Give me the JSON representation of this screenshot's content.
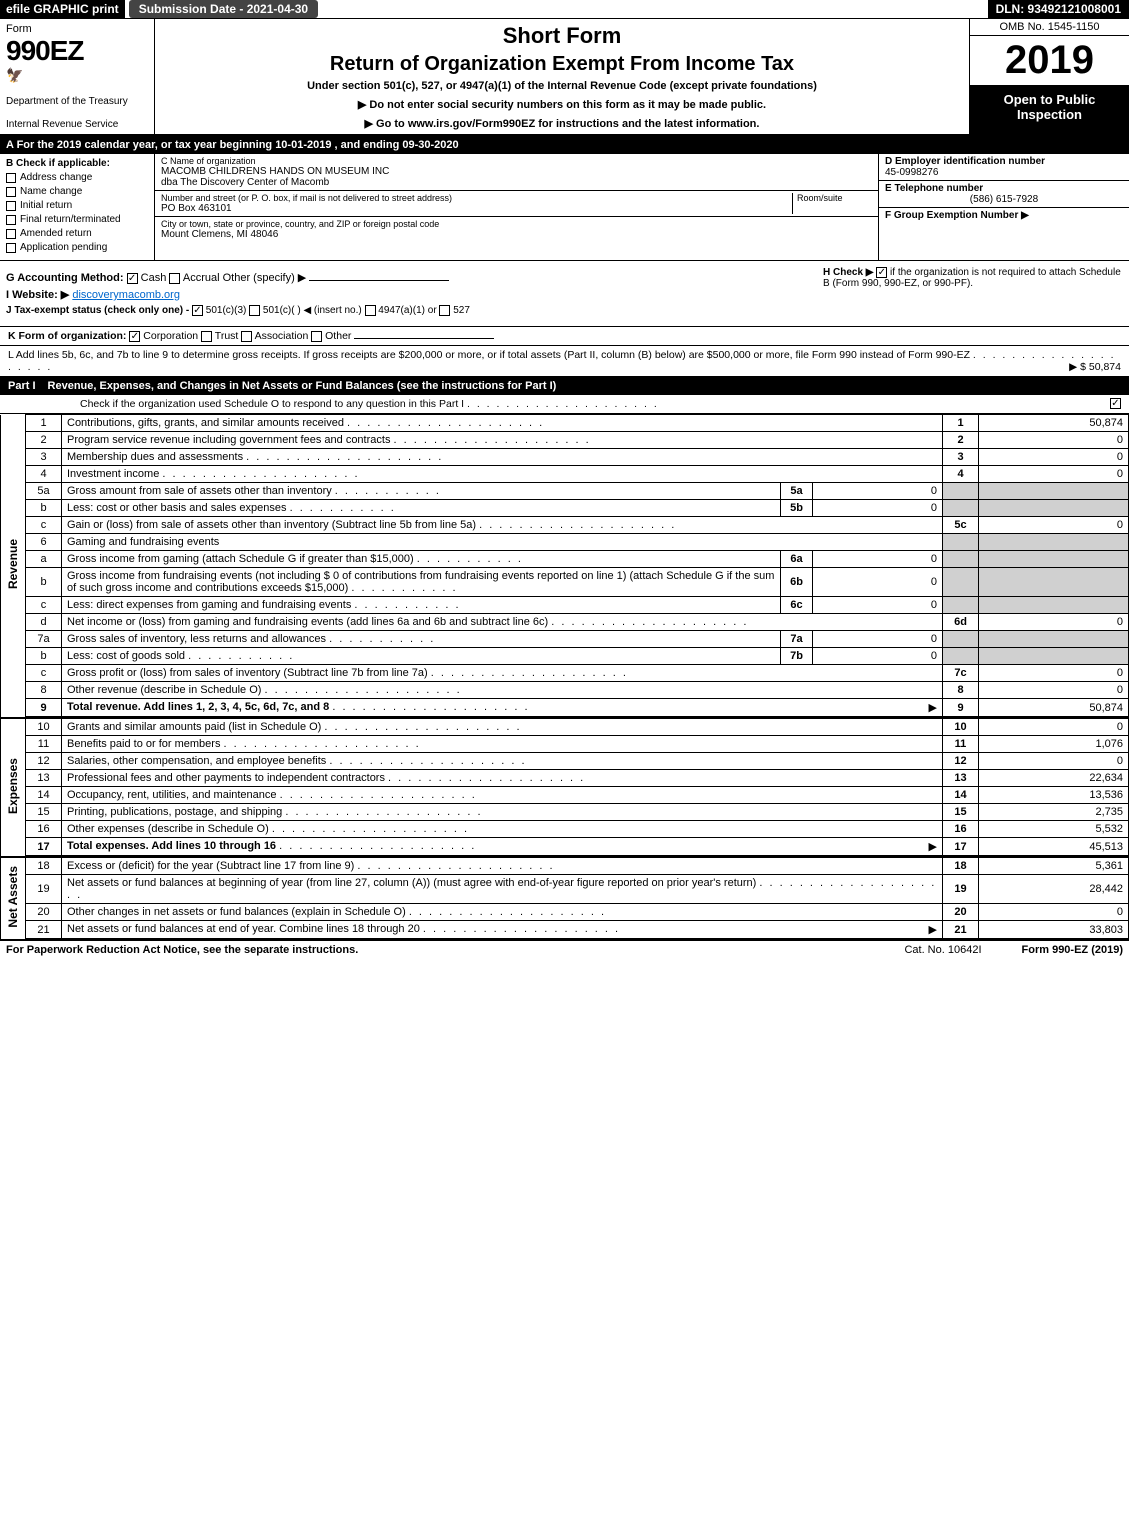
{
  "top": {
    "efile": "efile GRAPHIC print",
    "submission": "Submission Date - 2021-04-30",
    "dln": "DLN: 93492121008001"
  },
  "header": {
    "form": "Form",
    "number": "990EZ",
    "dept": "Department of the Treasury",
    "irs": "Internal Revenue Service",
    "short_form": "Short Form",
    "title": "Return of Organization Exempt From Income Tax",
    "subtitle": "Under section 501(c), 527, or 4947(a)(1) of the Internal Revenue Code (except private foundations)",
    "notice1": "▶ Do not enter social security numbers on this form as it may be made public.",
    "notice2": "▶ Go to www.irs.gov/Form990EZ for instructions and the latest information.",
    "omb": "OMB No. 1545-1150",
    "year": "2019",
    "open": "Open to Public Inspection"
  },
  "lineA": "A For the 2019 calendar year, or tax year beginning 10-01-2019 , and ending 09-30-2020",
  "colB": {
    "title": "B Check if applicable:",
    "items": [
      "Address change",
      "Name change",
      "Initial return",
      "Final return/terminated",
      "Amended return",
      "Application pending"
    ]
  },
  "colC": {
    "name_label": "C Name of organization",
    "name": "MACOMB CHILDRENS HANDS ON MUSEUM INC",
    "dba": "dba The Discovery Center of Macomb",
    "addr_label": "Number and street (or P. O. box, if mail is not delivered to street address)",
    "room_label": "Room/suite",
    "addr": "PO Box 463101",
    "city_label": "City or town, state or province, country, and ZIP or foreign postal code",
    "city": "Mount Clemens, MI  48046"
  },
  "colD": {
    "ein_label": "D Employer identification number",
    "ein": "45-0998276",
    "phone_label": "E Telephone number",
    "phone": "(586) 615-7928",
    "group_label": "F Group Exemption Number  ▶"
  },
  "gh": {
    "g": "G Accounting Method:",
    "cash": "Cash",
    "accrual": "Accrual",
    "other": "Other (specify) ▶",
    "h": "H Check ▶",
    "h_text": "if the organization is not required to attach Schedule B (Form 990, 990-EZ, or 990-PF).",
    "i_label": "I Website: ▶",
    "website": "discoverymacomb.org",
    "j": "J Tax-exempt status (check only one) -",
    "j_opts": [
      "501(c)(3)",
      "501(c)(  ) ◀ (insert no.)",
      "4947(a)(1) or",
      "527"
    ],
    "k": "K Form of organization:",
    "k_opts": [
      "Corporation",
      "Trust",
      "Association",
      "Other"
    ],
    "l": "L Add lines 5b, 6c, and 7b to line 9 to determine gross receipts. If gross receipts are $200,000 or more, or if total assets (Part II, column (B) below) are $500,000 or more, file Form 990 instead of Form 990-EZ",
    "l_amount": "▶ $ 50,874"
  },
  "part1": {
    "label": "Part I",
    "title": "Revenue, Expenses, and Changes in Net Assets or Fund Balances (see the instructions for Part I)",
    "check_text": "Check if the organization used Schedule O to respond to any question in this Part I"
  },
  "sections": {
    "revenue": "Revenue",
    "expenses": "Expenses",
    "netassets": "Net Assets"
  },
  "rows": [
    {
      "n": "1",
      "d": "Contributions, gifts, grants, and similar amounts received",
      "ln": "1",
      "v": "50,874"
    },
    {
      "n": "2",
      "d": "Program service revenue including government fees and contracts",
      "ln": "2",
      "v": "0"
    },
    {
      "n": "3",
      "d": "Membership dues and assessments",
      "ln": "3",
      "v": "0"
    },
    {
      "n": "4",
      "d": "Investment income",
      "ln": "4",
      "v": "0"
    },
    {
      "n": "5a",
      "d": "Gross amount from sale of assets other than inventory",
      "sub": "5a",
      "sv": "0"
    },
    {
      "n": "b",
      "d": "Less: cost or other basis and sales expenses",
      "sub": "5b",
      "sv": "0"
    },
    {
      "n": "c",
      "d": "Gain or (loss) from sale of assets other than inventory (Subtract line 5b from line 5a)",
      "ln": "5c",
      "v": "0"
    },
    {
      "n": "6",
      "d": "Gaming and fundraising events",
      "shade": true
    },
    {
      "n": "a",
      "d": "Gross income from gaming (attach Schedule G if greater than $15,000)",
      "sub": "6a",
      "sv": "0",
      "shade": true
    },
    {
      "n": "b",
      "d": "Gross income from fundraising events (not including $ 0 of contributions from fundraising events reported on line 1) (attach Schedule G if the sum of such gross income and contributions exceeds $15,000)",
      "sub": "6b",
      "sv": "0",
      "shade": true
    },
    {
      "n": "c",
      "d": "Less: direct expenses from gaming and fundraising events",
      "sub": "6c",
      "sv": "0",
      "shade": true
    },
    {
      "n": "d",
      "d": "Net income or (loss) from gaming and fundraising events (add lines 6a and 6b and subtract line 6c)",
      "ln": "6d",
      "v": "0"
    },
    {
      "n": "7a",
      "d": "Gross sales of inventory, less returns and allowances",
      "sub": "7a",
      "sv": "0"
    },
    {
      "n": "b",
      "d": "Less: cost of goods sold",
      "sub": "7b",
      "sv": "0"
    },
    {
      "n": "c",
      "d": "Gross profit or (loss) from sales of inventory (Subtract line 7b from line 7a)",
      "ln": "7c",
      "v": "0"
    },
    {
      "n": "8",
      "d": "Other revenue (describe in Schedule O)",
      "ln": "8",
      "v": "0"
    },
    {
      "n": "9",
      "d": "Total revenue. Add lines 1, 2, 3, 4, 5c, 6d, 7c, and 8",
      "ln": "9",
      "v": "50,874",
      "bold": true,
      "arrow": true
    }
  ],
  "exp_rows": [
    {
      "n": "10",
      "d": "Grants and similar amounts paid (list in Schedule O)",
      "ln": "10",
      "v": "0"
    },
    {
      "n": "11",
      "d": "Benefits paid to or for members",
      "ln": "11",
      "v": "1,076"
    },
    {
      "n": "12",
      "d": "Salaries, other compensation, and employee benefits",
      "ln": "12",
      "v": "0"
    },
    {
      "n": "13",
      "d": "Professional fees and other payments to independent contractors",
      "ln": "13",
      "v": "22,634"
    },
    {
      "n": "14",
      "d": "Occupancy, rent, utilities, and maintenance",
      "ln": "14",
      "v": "13,536"
    },
    {
      "n": "15",
      "d": "Printing, publications, postage, and shipping",
      "ln": "15",
      "v": "2,735"
    },
    {
      "n": "16",
      "d": "Other expenses (describe in Schedule O)",
      "ln": "16",
      "v": "5,532"
    },
    {
      "n": "17",
      "d": "Total expenses. Add lines 10 through 16",
      "ln": "17",
      "v": "45,513",
      "bold": true,
      "arrow": true
    }
  ],
  "net_rows": [
    {
      "n": "18",
      "d": "Excess or (deficit) for the year (Subtract line 17 from line 9)",
      "ln": "18",
      "v": "5,361"
    },
    {
      "n": "19",
      "d": "Net assets or fund balances at beginning of year (from line 27, column (A)) (must agree with end-of-year figure reported on prior year's return)",
      "ln": "19",
      "v": "28,442"
    },
    {
      "n": "20",
      "d": "Other changes in net assets or fund balances (explain in Schedule O)",
      "ln": "20",
      "v": "0"
    },
    {
      "n": "21",
      "d": "Net assets or fund balances at end of year. Combine lines 18 through 20",
      "ln": "21",
      "v": "33,803",
      "arrow": true
    }
  ],
  "footer": {
    "left": "For Paperwork Reduction Act Notice, see the separate instructions.",
    "mid": "Cat. No. 10642I",
    "right": "Form 990-EZ (2019)"
  },
  "colors": {
    "black": "#000000",
    "shade": "#d0d0d0",
    "link": "#0066cc"
  }
}
